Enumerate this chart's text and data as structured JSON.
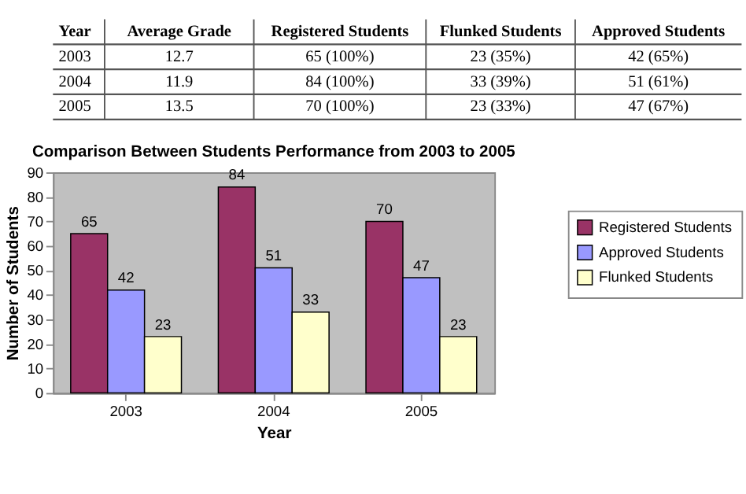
{
  "chart_data": {
    "type": "bar",
    "title": "Comparison Between Students Performance from 2003 to 2005",
    "xlabel": "Year",
    "ylabel": "Number of Students",
    "categories": [
      "2003",
      "2004",
      "2005"
    ],
    "series": [
      {
        "name": "Registered Students",
        "color": "#993366",
        "values": [
          65,
          84,
          70
        ]
      },
      {
        "name": "Approved Students",
        "color": "#9999ff",
        "values": [
          42,
          51,
          47
        ]
      },
      {
        "name": "Flunked Students",
        "color": "#ffffcc",
        "values": [
          23,
          33,
          23
        ]
      }
    ],
    "ylim": [
      0,
      90
    ],
    "yticks": [
      0,
      10,
      20,
      30,
      40,
      50,
      60,
      70,
      80,
      90
    ],
    "data_labels": true,
    "grid": false,
    "legend": "right",
    "annotations": [
      "Year",
      "Average Grade",
      "Registered Students",
      "Flunked Students",
      "Approved Students",
      "2003",
      "12.7",
      "65 (100%)",
      "23 (35%)",
      "42 (65%)",
      "2004",
      "11.9",
      "84 (100%)",
      "33 (39%)",
      "51 (61%)",
      "2005",
      "13.5",
      "70 (100%)",
      "23 (33%)",
      "47 (67%)"
    ]
  }
}
